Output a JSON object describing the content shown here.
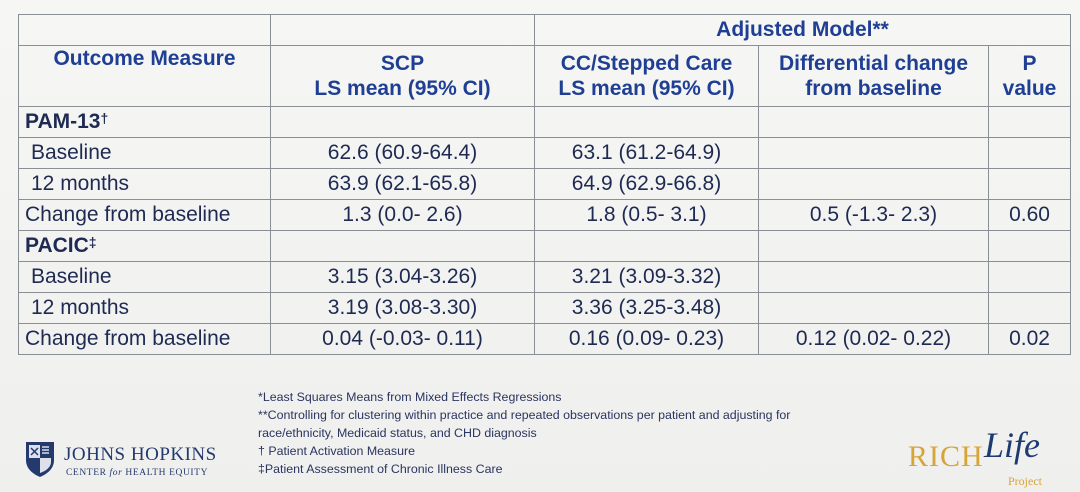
{
  "table": {
    "group_header": "Adjusted Model**",
    "columns": {
      "outcome": "Outcome Measure",
      "scp_line1": "SCP",
      "scp_line2": "LS mean (95% CI)",
      "cc_line1": "CC/Stepped Care",
      "cc_line2": "LS mean (95% CI)",
      "diff_line1": "Differential change",
      "diff_line2": "from baseline",
      "p_line1": "P",
      "p_line2": "value"
    },
    "pam": {
      "title": "PAM-13",
      "mark": "†",
      "baseline": {
        "label": "Baseline",
        "scp": "62.6 (60.9-64.4)",
        "cc": "63.1 (61.2-64.9)",
        "diff": "",
        "p": ""
      },
      "months12": {
        "label": "12 months",
        "scp": "63.9 (62.1-65.8)",
        "cc": "64.9 (62.9-66.8)",
        "diff": "",
        "p": ""
      },
      "change": {
        "label": "Change from baseline",
        "scp": "1.3 (0.0- 2.6)",
        "cc": "1.8 (0.5- 3.1)",
        "diff": "0.5 (-1.3- 2.3)",
        "p": "0.60"
      }
    },
    "pacic": {
      "title": "PACIC",
      "mark": "‡",
      "baseline": {
        "label": "Baseline",
        "scp": "3.15 (3.04-3.26)",
        "cc": "3.21 (3.09-3.32)",
        "diff": "",
        "p": ""
      },
      "months12": {
        "label": "12 months",
        "scp": "3.19 (3.08-3.30)",
        "cc": "3.36 (3.25-3.48)",
        "diff": "",
        "p": ""
      },
      "change": {
        "label": "Change from baseline",
        "scp": "0.04 (-0.03- 0.11)",
        "cc": "0.16 (0.09- 0.23)",
        "diff": "0.12 (0.02- 0.22)",
        "p": "0.02"
      }
    }
  },
  "footnotes": {
    "f1": "*Least Squares Means from Mixed Effects Regressions",
    "f2": "**Controlling for clustering within practice and repeated observations per patient and adjusting for",
    "f3": "race/ethnicity, Medicaid status, and CHD diagnosis",
    "f4": "† Patient Activation Measure",
    "f5": "‡Patient Assessment of Chronic Illness Care"
  },
  "logos": {
    "jh_name": "JOHNS HOPKINS",
    "jh_sub_1": "CENTER ",
    "jh_sub_for": "for",
    "jh_sub_2": " HEALTH EQUITY",
    "rich": "RICH",
    "life": "Life",
    "project": "Project"
  },
  "colors": {
    "header_text": "#1f3f94",
    "body_text": "#1e2a52",
    "grid": "#8a8f96",
    "rich_gold": "#d9a437",
    "jh_blue": "#243a6e"
  }
}
